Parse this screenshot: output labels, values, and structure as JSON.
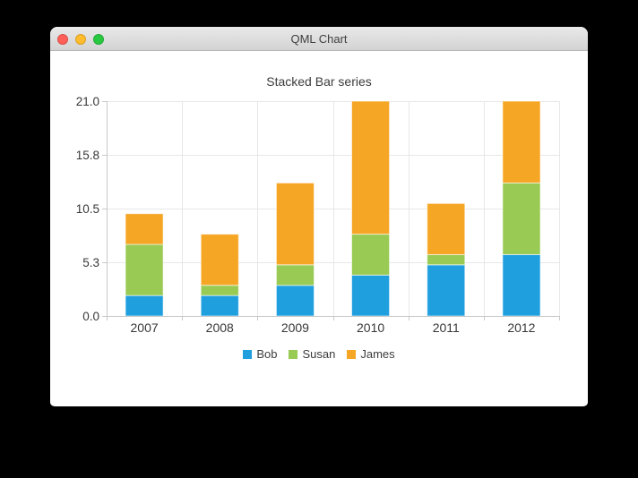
{
  "window": {
    "title": "QML Chart",
    "traffic_lights": {
      "close_color": "#ff5f57",
      "minimize_color": "#febc2e",
      "zoom_color": "#28c840"
    }
  },
  "chart_data": {
    "type": "bar",
    "stacked": true,
    "title": "Stacked Bar series",
    "xlabel": "",
    "ylabel": "",
    "categories": [
      "2007",
      "2008",
      "2009",
      "2010",
      "2011",
      "2012"
    ],
    "series": [
      {
        "name": "Bob",
        "color": "#209fdf",
        "values": [
          2,
          2,
          3,
          4,
          5,
          6
        ]
      },
      {
        "name": "Susan",
        "color": "#99ca53",
        "values": [
          5,
          1,
          2,
          4,
          1,
          7
        ]
      },
      {
        "name": "James",
        "color": "#f6a625",
        "values": [
          3,
          5,
          8,
          13,
          5,
          8
        ]
      }
    ],
    "totals": [
      10,
      8,
      13,
      21,
      11,
      21
    ],
    "ylim": [
      0,
      21
    ],
    "y_ticks": [
      {
        "value": 0,
        "label": "0.0"
      },
      {
        "value": 5.25,
        "label": "5.3"
      },
      {
        "value": 10.5,
        "label": "10.5"
      },
      {
        "value": 15.75,
        "label": "15.8"
      },
      {
        "value": 21,
        "label": "21.0"
      }
    ],
    "grid": true,
    "legend_position": "bottom",
    "bar_width_ratio": 0.5,
    "grid_color": "#e7e7e7",
    "axis_color": "#c9c9c9",
    "label_color": "#383838"
  }
}
